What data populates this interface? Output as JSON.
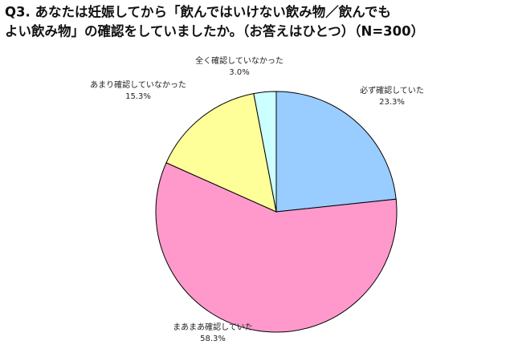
{
  "chart_data": {
    "type": "pie",
    "title": [
      "Q3. あなたは妊娠してから「飲んではいけない飲み物／飲んでも",
      "よい飲み物」の確認をしていましたか。（お答えはひとつ）（N=300）"
    ],
    "categories": [
      "必ず確認していた",
      "まあまあ確認していた",
      "あまり確認していなかった",
      "全く確認していなかった"
    ],
    "values": [
      23.3,
      58.3,
      15.3,
      3.0
    ],
    "value_labels": [
      "23.3%",
      "58.3%",
      "15.3%",
      "3.0%"
    ],
    "colors": [
      "#99ccff",
      "#ff99cc",
      "#ffff99",
      "#ccffff"
    ]
  }
}
